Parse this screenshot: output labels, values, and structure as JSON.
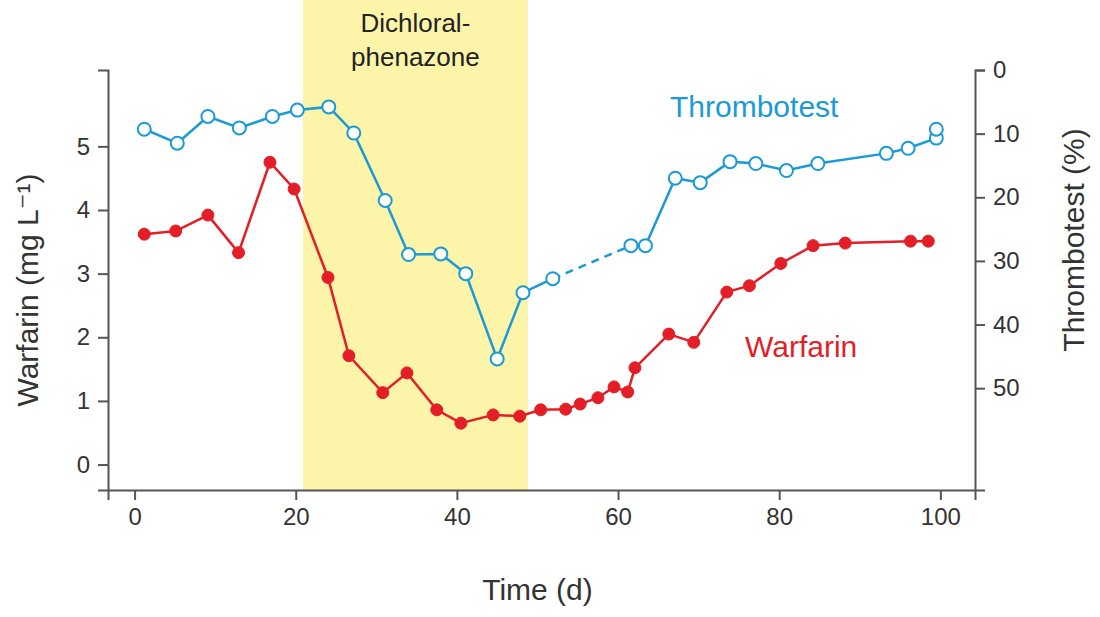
{
  "chart_data": {
    "type": "line",
    "y_label": "Warfarin (mg L⁻¹)",
    "y2_label": "Thrombotest (%)",
    "x_label": "Time (d)",
    "xlim": [
      -3.3,
      104.3
    ],
    "xticks": [
      0,
      20,
      40,
      60,
      80,
      100
    ],
    "ylim": [
      -0.4,
      6.2
    ],
    "yticks": [
      0,
      1,
      2,
      3,
      4,
      5
    ],
    "y2lim": [
      0,
      66
    ],
    "y2ticks": [
      0,
      10,
      20,
      30,
      40,
      50
    ],
    "spans": [
      {
        "label_lines": [
          "Dichloral-",
          "phenazone"
        ],
        "x": [
          20.9,
          48.8
        ],
        "color": "#fcf4a8"
      }
    ],
    "series": [
      {
        "name": "Warfarin",
        "color": "#e41e26",
        "marker": "filled_circle",
        "line_style": "solid",
        "x": [
          1.2,
          5.1,
          9.1,
          12.9,
          16.8,
          19.8,
          24.0,
          26.6,
          30.8,
          33.8,
          37.5,
          40.5,
          44.5,
          47.8,
          50.4,
          53.5,
          55.3,
          57.5,
          59.5,
          61.2,
          62.1,
          66.3,
          69.4,
          73.5,
          76.3,
          80.2,
          84.2,
          88.2,
          96.3,
          98.5
        ],
        "values": [
          3.62,
          3.67,
          3.92,
          3.33,
          4.75,
          4.33,
          2.94,
          1.71,
          1.13,
          1.44,
          0.86,
          0.65,
          0.78,
          0.76,
          0.86,
          0.87,
          0.95,
          1.05,
          1.22,
          1.14,
          1.52,
          2.05,
          1.92,
          2.71,
          2.81,
          3.16,
          3.44,
          3.48,
          3.51,
          3.51
        ]
      },
      {
        "name": "Thrombotest",
        "color": "#1b9ad6",
        "marker": "open_circle",
        "line_style": "solid",
        "axis": "y2",
        "x": [
          1.2,
          5.3,
          9.1,
          13.0,
          17.1,
          20.2,
          24.1,
          27.2,
          31.1,
          34.0,
          38.0,
          41.1,
          45.0,
          48.2,
          51.9,
          null,
          61.6,
          63.4,
          67.1,
          70.2,
          73.9,
          77.1,
          80.9,
          84.8,
          93.3,
          96.0,
          99.5,
          99.5
        ],
        "values": [
          9.3,
          11.5,
          7.3,
          9.1,
          7.3,
          6.3,
          5.8,
          9.9,
          20.5,
          29.0,
          28.9,
          32.0,
          45.4,
          35.0,
          32.8,
          null,
          27.6,
          27.6,
          17.0,
          17.7,
          14.4,
          14.7,
          15.8,
          14.7,
          13.1,
          12.3,
          10.7,
          9.3
        ]
      },
      {
        "color": "#1b9ad6",
        "marker": "none",
        "line_style": "dashed",
        "axis": "y2",
        "x": [
          51.9,
          61.6
        ],
        "values": [
          32.8,
          27.6
        ]
      }
    ]
  }
}
